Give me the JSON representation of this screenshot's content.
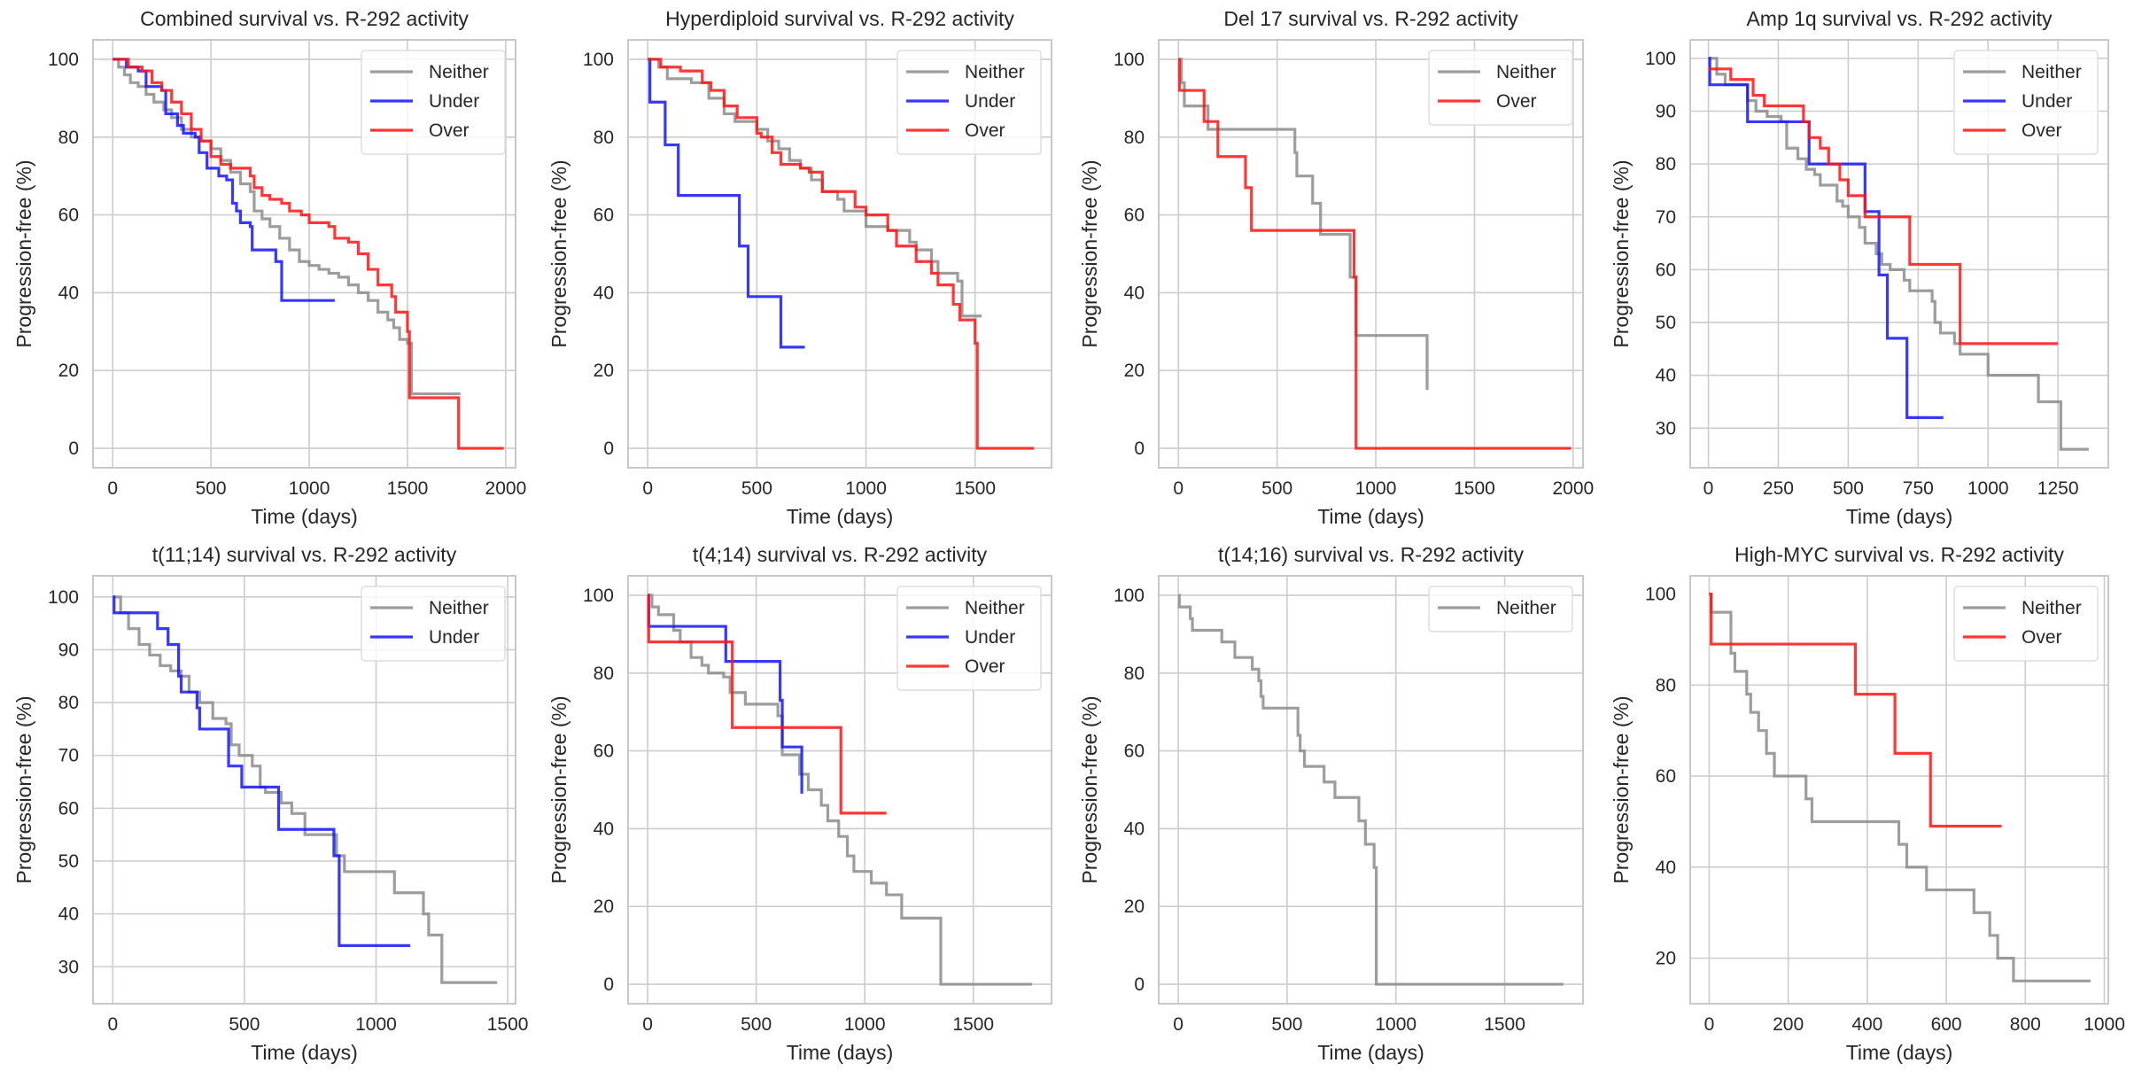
{
  "figure": {
    "series_colors": {
      "Neither": "#8c8c8c",
      "Under": "#1414ff",
      "Over": "#ff1414"
    },
    "grid_color": "#cccccc",
    "frame_color": "#c8c8c8"
  },
  "chart_data": [
    {
      "type": "line",
      "title": "Combined survival vs. R-292 activity",
      "xlabel": "Time (days)",
      "ylabel": "Progression-free (%)",
      "xlim": [
        -100,
        2050
      ],
      "ylim": [
        -5,
        105
      ],
      "xticks": [
        0,
        500,
        1000,
        1500,
        2000
      ],
      "yticks": [
        0,
        20,
        40,
        60,
        80,
        100
      ],
      "grid": true,
      "legend": "top-right",
      "series": [
        {
          "name": "Neither",
          "x": [
            0,
            30,
            60,
            90,
            130,
            170,
            210,
            260,
            300,
            350,
            400,
            450,
            500,
            550,
            600,
            650,
            700,
            720,
            760,
            800,
            850,
            900,
            950,
            1000,
            1050,
            1100,
            1150,
            1200,
            1250,
            1300,
            1350,
            1400,
            1430,
            1460,
            1500,
            1520,
            1770
          ],
          "y": [
            100,
            98,
            96,
            94,
            93,
            91,
            89,
            87,
            85,
            82,
            80,
            79,
            77,
            74,
            71,
            68,
            66,
            61,
            59,
            57,
            54,
            51,
            48,
            47,
            46,
            45,
            44,
            42,
            40,
            38,
            35,
            33,
            31,
            28,
            27,
            14,
            14
          ]
        },
        {
          "name": "Under",
          "x": [
            0,
            70,
            130,
            170,
            250,
            270,
            330,
            360,
            420,
            440,
            480,
            540,
            580,
            610,
            630,
            650,
            700,
            710,
            830,
            860,
            1130
          ],
          "y": [
            100,
            98,
            97,
            93,
            92,
            86,
            83,
            81,
            80,
            76,
            72,
            70,
            69,
            63,
            61,
            58,
            57,
            51,
            48,
            38,
            38
          ]
        },
        {
          "name": "Over",
          "x": [
            0,
            80,
            150,
            200,
            250,
            300,
            350,
            400,
            450,
            500,
            550,
            600,
            650,
            700,
            720,
            760,
            800,
            860,
            900,
            960,
            1000,
            1100,
            1130,
            1200,
            1250,
            1300,
            1350,
            1420,
            1440,
            1500,
            1510,
            1760,
            1990
          ],
          "y": [
            100,
            98,
            97,
            94,
            92,
            89,
            86,
            82,
            79,
            75,
            73,
            72,
            72,
            70,
            67,
            65,
            64,
            63,
            61,
            60,
            58,
            57,
            54,
            53,
            50,
            46,
            42,
            39,
            35,
            30,
            13,
            0,
            0
          ]
        }
      ]
    },
    {
      "type": "line",
      "title": "Hyperdiploid survival vs. R-292 activity",
      "xlabel": "Time (days)",
      "ylabel": "Progression-free (%)",
      "xlim": [
        -90,
        1850
      ],
      "ylim": [
        -5,
        105
      ],
      "xticks": [
        0,
        500,
        1000,
        1500
      ],
      "yticks": [
        0,
        20,
        40,
        60,
        80,
        100
      ],
      "grid": true,
      "legend": "top-right",
      "series": [
        {
          "name": "Neither",
          "x": [
            0,
            50,
            90,
            200,
            280,
            350,
            400,
            500,
            550,
            600,
            650,
            700,
            750,
            800,
            870,
            900,
            1000,
            1100,
            1200,
            1230,
            1300,
            1330,
            1420,
            1440,
            1530
          ],
          "y": [
            100,
            98,
            95,
            94,
            90,
            86,
            84,
            82,
            79,
            77,
            74,
            72,
            69,
            66,
            64,
            61,
            57,
            56,
            53,
            51,
            48,
            45,
            43,
            34,
            34
          ]
        },
        {
          "name": "Under",
          "x": [
            0,
            10,
            80,
            140,
            420,
            460,
            610,
            720
          ],
          "y": [
            100,
            89,
            78,
            65,
            52,
            39,
            26,
            26
          ]
        },
        {
          "name": "Over",
          "x": [
            0,
            60,
            150,
            250,
            290,
            350,
            410,
            500,
            520,
            570,
            610,
            700,
            740,
            800,
            950,
            1000,
            1100,
            1140,
            1230,
            1300,
            1330,
            1400,
            1430,
            1500,
            1510,
            1770
          ],
          "y": [
            100,
            98,
            97,
            94,
            92,
            88,
            85,
            81,
            80,
            76,
            73,
            72,
            71,
            66,
            62,
            60,
            56,
            52,
            48,
            45,
            42,
            37,
            33,
            27,
            0,
            0
          ]
        }
      ]
    },
    {
      "type": "line",
      "title": "Del 17 survival vs. R-292 activity",
      "xlabel": "Time (days)",
      "ylabel": "Progression-free (%)",
      "xlim": [
        -100,
        2050
      ],
      "ylim": [
        -5,
        105
      ],
      "xticks": [
        0,
        500,
        1000,
        1500,
        2000
      ],
      "yticks": [
        0,
        20,
        40,
        60,
        80,
        100
      ],
      "grid": true,
      "legend": "top-right",
      "series": [
        {
          "name": "Neither",
          "x": [
            0,
            15,
            30,
            150,
            590,
            600,
            680,
            720,
            870,
            900,
            1260
          ],
          "y": [
            100,
            94,
            88,
            82,
            76,
            70,
            63,
            55,
            44,
            29,
            15
          ]
        },
        {
          "name": "Over",
          "x": [
            0,
            5,
            130,
            200,
            340,
            370,
            890,
            900,
            1990
          ],
          "y": [
            100,
            92,
            84,
            75,
            67,
            56,
            44,
            0,
            0
          ]
        }
      ]
    },
    {
      "type": "line",
      "title": "Amp 1q survival vs. R-292 activity",
      "xlabel": "Time (days)",
      "ylabel": "Progression-free (%)",
      "xlim": [
        -65,
        1430
      ],
      "ylim": [
        22.5,
        103.5
      ],
      "xticks": [
        0,
        250,
        500,
        750,
        1000,
        1250
      ],
      "yticks": [
        30,
        40,
        50,
        60,
        70,
        80,
        90,
        100
      ],
      "grid": true,
      "legend": "top-right",
      "series": [
        {
          "name": "Neither",
          "x": [
            0,
            30,
            60,
            140,
            170,
            210,
            260,
            280,
            320,
            350,
            380,
            400,
            460,
            480,
            500,
            540,
            560,
            600,
            620,
            650,
            700,
            720,
            800,
            810,
            830,
            880,
            900,
            960,
            1000,
            1180,
            1260,
            1360
          ],
          "y": [
            100,
            97,
            95,
            92,
            90,
            89,
            88,
            83,
            81,
            79,
            78,
            76,
            73,
            72,
            70,
            68,
            65,
            63,
            61,
            60,
            58,
            56,
            54,
            50,
            48,
            46,
            44,
            44,
            40,
            35,
            26,
            26
          ]
        },
        {
          "name": "Under",
          "x": [
            0,
            5,
            140,
            360,
            560,
            610,
            640,
            710,
            840
          ],
          "y": [
            100,
            95,
            88,
            80,
            71,
            59,
            47,
            32,
            32
          ]
        },
        {
          "name": "Over",
          "x": [
            0,
            80,
            160,
            200,
            340,
            360,
            400,
            430,
            470,
            500,
            560,
            720,
            900,
            1250
          ],
          "y": [
            98,
            96,
            93,
            91,
            88,
            85,
            83,
            80,
            77,
            74,
            70,
            61,
            46,
            46
          ]
        }
      ]
    },
    {
      "type": "line",
      "title": "t(11;14) survival vs. R-292 activity",
      "xlabel": "Time (days)",
      "ylabel": "Progression-free (%)",
      "xlim": [
        -75,
        1530
      ],
      "ylim": [
        23,
        104
      ],
      "xticks": [
        0,
        500,
        1000,
        1500
      ],
      "yticks": [
        30,
        40,
        50,
        60,
        70,
        80,
        90,
        100
      ],
      "grid": true,
      "legend": "top-right",
      "series": [
        {
          "name": "Neither",
          "x": [
            0,
            30,
            60,
            100,
            140,
            180,
            220,
            260,
            290,
            330,
            380,
            430,
            450,
            480,
            530,
            560,
            580,
            640,
            680,
            730,
            850,
            880,
            1070,
            1180,
            1200,
            1250,
            1460
          ],
          "y": [
            100,
            97,
            94,
            91,
            89,
            87,
            86,
            85,
            82,
            80,
            77,
            76,
            72,
            70,
            68,
            64,
            63,
            61,
            59,
            55,
            51,
            48,
            44,
            40,
            36,
            27,
            27
          ]
        },
        {
          "name": "Under",
          "x": [
            0,
            5,
            170,
            210,
            250,
            260,
            320,
            330,
            440,
            490,
            630,
            840,
            860,
            1130
          ],
          "y": [
            100,
            97,
            94,
            91,
            85,
            82,
            79,
            75,
            68,
            64,
            56,
            51,
            34,
            34
          ]
        }
      ]
    },
    {
      "type": "line",
      "title": "t(4;14) survival vs. R-292 activity",
      "xlabel": "Time (days)",
      "ylabel": "Progression-free (%)",
      "xlim": [
        -90,
        1860
      ],
      "ylim": [
        -5,
        105
      ],
      "xticks": [
        0,
        500,
        1000,
        1500
      ],
      "yticks": [
        0,
        20,
        40,
        60,
        80,
        100
      ],
      "grid": true,
      "legend": "top-right",
      "series": [
        {
          "name": "Neither",
          "x": [
            0,
            20,
            50,
            120,
            150,
            200,
            250,
            280,
            350,
            380,
            450,
            600,
            620,
            700,
            740,
            800,
            830,
            880,
            920,
            950,
            1030,
            1100,
            1170,
            1350,
            1770
          ],
          "y": [
            100,
            97,
            95,
            91,
            88,
            84,
            82,
            80,
            79,
            75,
            72,
            69,
            59,
            54,
            50,
            46,
            42,
            38,
            33,
            29,
            26,
            23,
            17,
            0,
            0
          ]
        },
        {
          "name": "Under",
          "x": [
            0,
            5,
            360,
            610,
            620,
            710
          ],
          "y": [
            100,
            92,
            83,
            73,
            61,
            49
          ]
        },
        {
          "name": "Over",
          "x": [
            0,
            5,
            390,
            890,
            1100
          ],
          "y": [
            100,
            88,
            66,
            44,
            44
          ]
        }
      ]
    },
    {
      "type": "line",
      "title": "t(14;16) survival vs. R-292 activity",
      "xlabel": "Time (days)",
      "ylabel": "Progression-free (%)",
      "xlim": [
        -90,
        1860
      ],
      "ylim": [
        -5,
        105
      ],
      "xticks": [
        0,
        500,
        1000,
        1500
      ],
      "yticks": [
        0,
        20,
        40,
        60,
        80,
        100
      ],
      "grid": true,
      "legend": "top-right",
      "series": [
        {
          "name": "Neither",
          "x": [
            0,
            5,
            55,
            65,
            200,
            260,
            340,
            370,
            380,
            390,
            550,
            560,
            580,
            670,
            720,
            830,
            860,
            900,
            910,
            1770
          ],
          "y": [
            100,
            97,
            94,
            91,
            88,
            84,
            81,
            78,
            74,
            71,
            64,
            60,
            56,
            52,
            48,
            42,
            36,
            30,
            0,
            0
          ]
        }
      ]
    },
    {
      "type": "line",
      "title": "High-MYC survival vs. R-292 activity",
      "xlabel": "Time (days)",
      "ylabel": "Progression-free (%)",
      "xlim": [
        -48,
        1010
      ],
      "ylim": [
        10,
        104
      ],
      "xticks": [
        0,
        200,
        400,
        600,
        800,
        1000
      ],
      "yticks": [
        20,
        40,
        60,
        80
      ],
      "ytick_labels_extra": [
        100
      ],
      "grid": true,
      "legend": "top-right",
      "series": [
        {
          "name": "Neither",
          "x": [
            0,
            5,
            55,
            65,
            95,
            105,
            125,
            145,
            165,
            245,
            260,
            480,
            500,
            550,
            670,
            710,
            730,
            770,
            965
          ],
          "y": [
            100,
            96,
            87,
            83,
            78,
            74,
            70,
            65,
            60,
            55,
            50,
            45,
            40,
            35,
            30,
            25,
            20,
            15,
            15
          ]
        },
        {
          "name": "Over",
          "x": [
            0,
            5,
            370,
            470,
            560,
            740
          ],
          "y": [
            100,
            89,
            78,
            65,
            49,
            49
          ]
        }
      ]
    }
  ]
}
